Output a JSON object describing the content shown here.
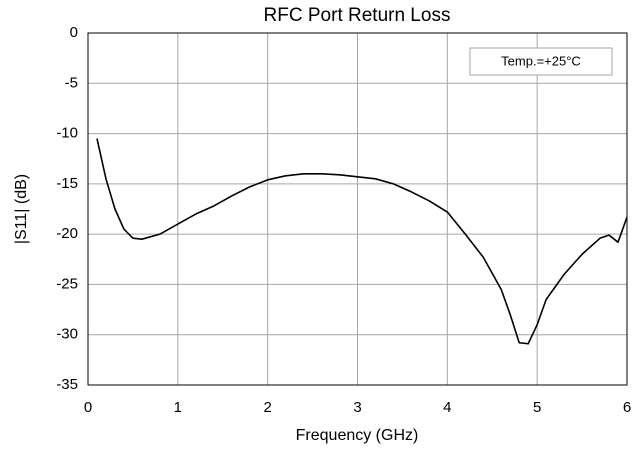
{
  "chart_data": {
    "type": "line",
    "title": "RFC Port Return Loss",
    "x_label": "Frequency (GHz)",
    "y_label": "|S11| (dB)",
    "annotation": "Temp.=+25°C",
    "x": [
      0.1,
      0.2,
      0.3,
      0.4,
      0.5,
      0.6,
      0.8,
      1.0,
      1.2,
      1.4,
      1.6,
      1.8,
      2.0,
      2.2,
      2.4,
      2.6,
      2.8,
      3.0,
      3.2,
      3.4,
      3.6,
      3.8,
      4.0,
      4.2,
      4.4,
      4.6,
      4.7,
      4.8,
      4.9,
      5.0,
      5.1,
      5.3,
      5.5,
      5.7,
      5.8,
      5.9,
      6.0
    ],
    "series": [
      {
        "color": "#000000",
        "values": [
          -10.5,
          -14.5,
          -17.5,
          -19.5,
          -20.4,
          -20.5,
          -20,
          -19,
          -18,
          -17.2,
          -16.2,
          -15.3,
          -14.6,
          -14.2,
          -14.0,
          -14.0,
          -14.1,
          -14.3,
          -14.5,
          -15.0,
          -15.8,
          -16.7,
          -17.8,
          -20,
          -22.3,
          -25.5,
          -28,
          -30.8,
          -30.9,
          -29,
          -26.5,
          -24,
          -22,
          -20.4,
          -20.1,
          -20.8,
          -18.3
        ]
      }
    ],
    "xlim": [
      0,
      6
    ],
    "xticks": [
      0,
      1,
      2,
      3,
      4,
      5,
      6
    ],
    "ylim": [
      -35,
      0
    ],
    "yticks": [
      -35,
      -30,
      -25,
      -20,
      -15,
      -10,
      -5,
      0
    ],
    "grid": true
  }
}
